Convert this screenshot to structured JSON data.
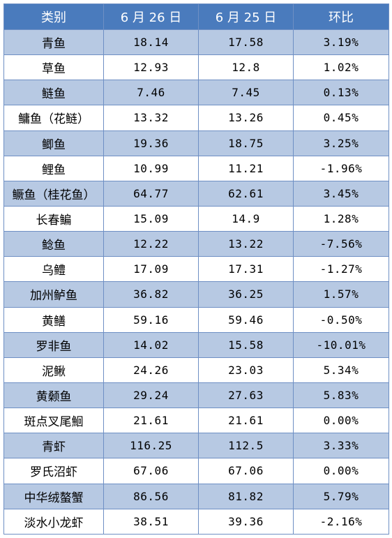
{
  "table": {
    "headers": [
      "类别",
      "6 月 26 日",
      "6 月 25 日",
      "环比"
    ],
    "rows": [
      [
        "青鱼",
        "18.14",
        "17.58",
        "3.19%"
      ],
      [
        "草鱼",
        "12.93",
        "12.8",
        "1.02%"
      ],
      [
        "鲢鱼",
        "7.46",
        "7.45",
        "0.13%"
      ],
      [
        "鳙鱼（花鲢）",
        "13.32",
        "13.26",
        "0.45%"
      ],
      [
        "鲫鱼",
        "19.36",
        "18.75",
        "3.25%"
      ],
      [
        "鲤鱼",
        "10.99",
        "11.21",
        "-1.96%"
      ],
      [
        "鳜鱼（桂花鱼）",
        "64.77",
        "62.61",
        "3.45%"
      ],
      [
        "长春鳊",
        "15.09",
        "14.9",
        "1.28%"
      ],
      [
        "鲶鱼",
        "12.22",
        "13.22",
        "-7.56%"
      ],
      [
        "乌鳢",
        "17.09",
        "17.31",
        "-1.27%"
      ],
      [
        "加州鲈鱼",
        "36.82",
        "36.25",
        "1.57%"
      ],
      [
        "黄鳝",
        "59.16",
        "59.46",
        "-0.50%"
      ],
      [
        "罗非鱼",
        "14.02",
        "15.58",
        "-10.01%"
      ],
      [
        "泥鳅",
        "24.26",
        "23.03",
        "5.34%"
      ],
      [
        "黄颡鱼",
        "29.24",
        "27.63",
        "5.83%"
      ],
      [
        "斑点叉尾鮰",
        "21.61",
        "21.61",
        "0.00%"
      ],
      [
        "青虾",
        "116.25",
        "112.5",
        "3.33%"
      ],
      [
        "罗氏沼虾",
        "67.06",
        "67.06",
        "0.00%"
      ],
      [
        "中华绒螯蟹",
        "86.56",
        "81.82",
        "5.79%"
      ],
      [
        "淡水小龙虾",
        "38.51",
        "39.36",
        "-2.16%"
      ]
    ]
  },
  "colors": {
    "header_bg": "#4a7bbd",
    "header_text": "#ffffff",
    "stripe_bg": "#b7c9e3",
    "border": "#6e8fc4"
  }
}
